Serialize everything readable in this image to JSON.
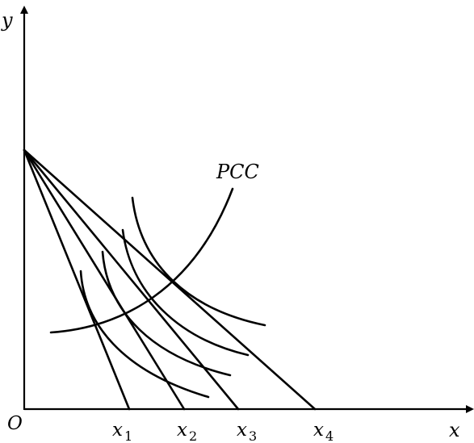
{
  "axes": {
    "y_label": "y",
    "x_label": "x",
    "origin_label": "O"
  },
  "curve_label": "PCC",
  "x_ticks": [
    {
      "base": "x",
      "sub": "1"
    },
    {
      "base": "x",
      "sub": "2"
    },
    {
      "base": "x",
      "sub": "3"
    },
    {
      "base": "x",
      "sub": "4"
    }
  ],
  "budget_lines_count": 4,
  "indifference_curves_count": 4
}
